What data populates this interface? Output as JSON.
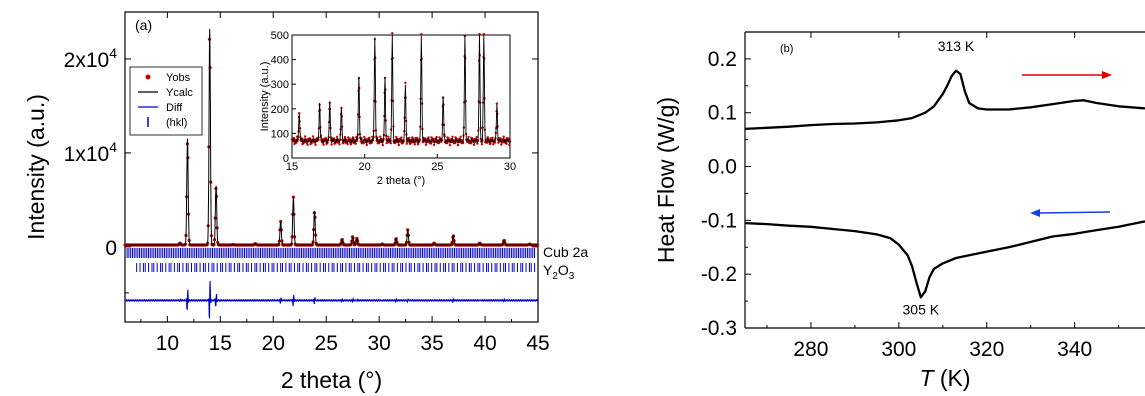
{
  "chart_data": [
    {
      "panel": "(a)",
      "type": "line",
      "xlabel": "2 theta (°)",
      "ylabel": "Intensity (a.u.)",
      "xlim": [
        6,
        45
      ],
      "ylim": [
        -8000,
        25000
      ],
      "x_ticks": [
        "10",
        "15",
        "20",
        "25",
        "30",
        "35",
        "40",
        "45"
      ],
      "y_ticks": [
        {
          "value": 0,
          "base": "0",
          "exp": ""
        },
        {
          "value": 10000,
          "base": "1x10",
          "exp": "4"
        },
        {
          "value": 20000,
          "base": "2x10",
          "exp": "4"
        }
      ],
      "legend": {
        "placement": "top-left",
        "entries": [
          {
            "label": "Yobs",
            "color": "#cc0000"
          },
          {
            "label": "Ycalc",
            "color": "#000000"
          },
          {
            "label": "Diff",
            "color": "#0000cc"
          },
          {
            "label": "(hkl)",
            "color": "#0000cc"
          }
        ]
      },
      "phase_labels": {
        "cub": "Cub 2a",
        "y2o3_main": "Y",
        "y2o3_sub1": "2",
        "y2o3_mid": "O",
        "y2o3_sub2": "3"
      },
      "peaks": [
        {
          "x": 11.2,
          "y": 400
        },
        {
          "x": 11.9,
          "y": 11500
        },
        {
          "x": 14.0,
          "y": 23200
        },
        {
          "x": 14.6,
          "y": 6500
        },
        {
          "x": 16.2,
          "y": 250
        },
        {
          "x": 18.3,
          "y": 350
        },
        {
          "x": 20.7,
          "y": 2700
        },
        {
          "x": 21.9,
          "y": 5300
        },
        {
          "x": 23.9,
          "y": 3800
        },
        {
          "x": 26.5,
          "y": 800
        },
        {
          "x": 27.5,
          "y": 1100
        },
        {
          "x": 27.9,
          "y": 900
        },
        {
          "x": 30.3,
          "y": 300
        },
        {
          "x": 31.6,
          "y": 900
        },
        {
          "x": 32.7,
          "y": 1800
        },
        {
          "x": 35.2,
          "y": 400
        },
        {
          "x": 37.0,
          "y": 1200
        },
        {
          "x": 39.5,
          "y": 400
        },
        {
          "x": 41.8,
          "y": 700
        },
        {
          "x": 44.2,
          "y": 300
        }
      ],
      "baseline": 200,
      "diff_offset": -5700,
      "inset": {
        "xlabel": "2 theta (°)",
        "ylabel": "Intensity (a.u.)",
        "xlim": [
          15,
          30
        ],
        "ylim": [
          0,
          500
        ],
        "x_ticks": [
          "15",
          "20",
          "25",
          "30"
        ],
        "y_ticks": [
          "0",
          "100",
          "200",
          "300",
          "400",
          "500"
        ],
        "peaks": [
          {
            "x": 15.5,
            "y": 190
          },
          {
            "x": 16.9,
            "y": 225
          },
          {
            "x": 17.6,
            "y": 230
          },
          {
            "x": 18.4,
            "y": 200
          },
          {
            "x": 19.6,
            "y": 340
          },
          {
            "x": 20.7,
            "y": 500
          },
          {
            "x": 21.4,
            "y": 320
          },
          {
            "x": 21.9,
            "y": 500
          },
          {
            "x": 22.8,
            "y": 300
          },
          {
            "x": 23.9,
            "y": 500
          },
          {
            "x": 25.4,
            "y": 250
          },
          {
            "x": 26.9,
            "y": 500
          },
          {
            "x": 27.9,
            "y": 500
          },
          {
            "x": 28.2,
            "y": 500
          },
          {
            "x": 29.1,
            "y": 220
          }
        ]
      }
    },
    {
      "panel": "(b)",
      "type": "line",
      "xlabel_main": "T",
      "xlabel_unit": " (K)",
      "ylabel": "Heat Flow (W/g)",
      "xlim": [
        265,
        356
      ],
      "ylim": [
        -0.3,
        0.25
      ],
      "x_ticks": [
        "280",
        "300",
        "320",
        "340"
      ],
      "y_ticks": [
        "0.2",
        "0.1",
        "0.0",
        "-0.1",
        "-0.2",
        "-0.3"
      ],
      "annotations": [
        "313 K",
        "305 K"
      ],
      "arrows": [
        {
          "direction": "right",
          "color": "#e00000"
        },
        {
          "direction": "left",
          "color": "#1a3fe0"
        }
      ],
      "series": [
        {
          "name": "",
          "x": [
            265,
            270,
            275,
            280,
            285,
            290,
            295,
            300,
            303,
            306,
            308,
            310,
            311,
            312,
            313,
            314,
            315,
            316,
            318,
            320,
            322,
            325,
            330,
            335,
            340,
            342,
            345,
            350,
            356
          ],
          "y": [
            0.07,
            0.072,
            0.074,
            0.077,
            0.079,
            0.08,
            0.082,
            0.086,
            0.09,
            0.1,
            0.112,
            0.135,
            0.15,
            0.168,
            0.178,
            0.172,
            0.14,
            0.118,
            0.108,
            0.106,
            0.106,
            0.106,
            0.11,
            0.116,
            0.122,
            0.123,
            0.118,
            0.112,
            0.108
          ]
        },
        {
          "name": "",
          "x": [
            265,
            270,
            275,
            280,
            285,
            290,
            295,
            298,
            300,
            302,
            303,
            304,
            305,
            306,
            307,
            308,
            310,
            313,
            316,
            320,
            325,
            330,
            335,
            340,
            345,
            350,
            356
          ],
          "y": [
            -0.105,
            -0.107,
            -0.11,
            -0.112,
            -0.116,
            -0.12,
            -0.126,
            -0.133,
            -0.145,
            -0.165,
            -0.185,
            -0.215,
            -0.243,
            -0.232,
            -0.205,
            -0.19,
            -0.18,
            -0.17,
            -0.165,
            -0.158,
            -0.15,
            -0.14,
            -0.13,
            -0.125,
            -0.118,
            -0.112,
            -0.102
          ]
        }
      ]
    }
  ]
}
